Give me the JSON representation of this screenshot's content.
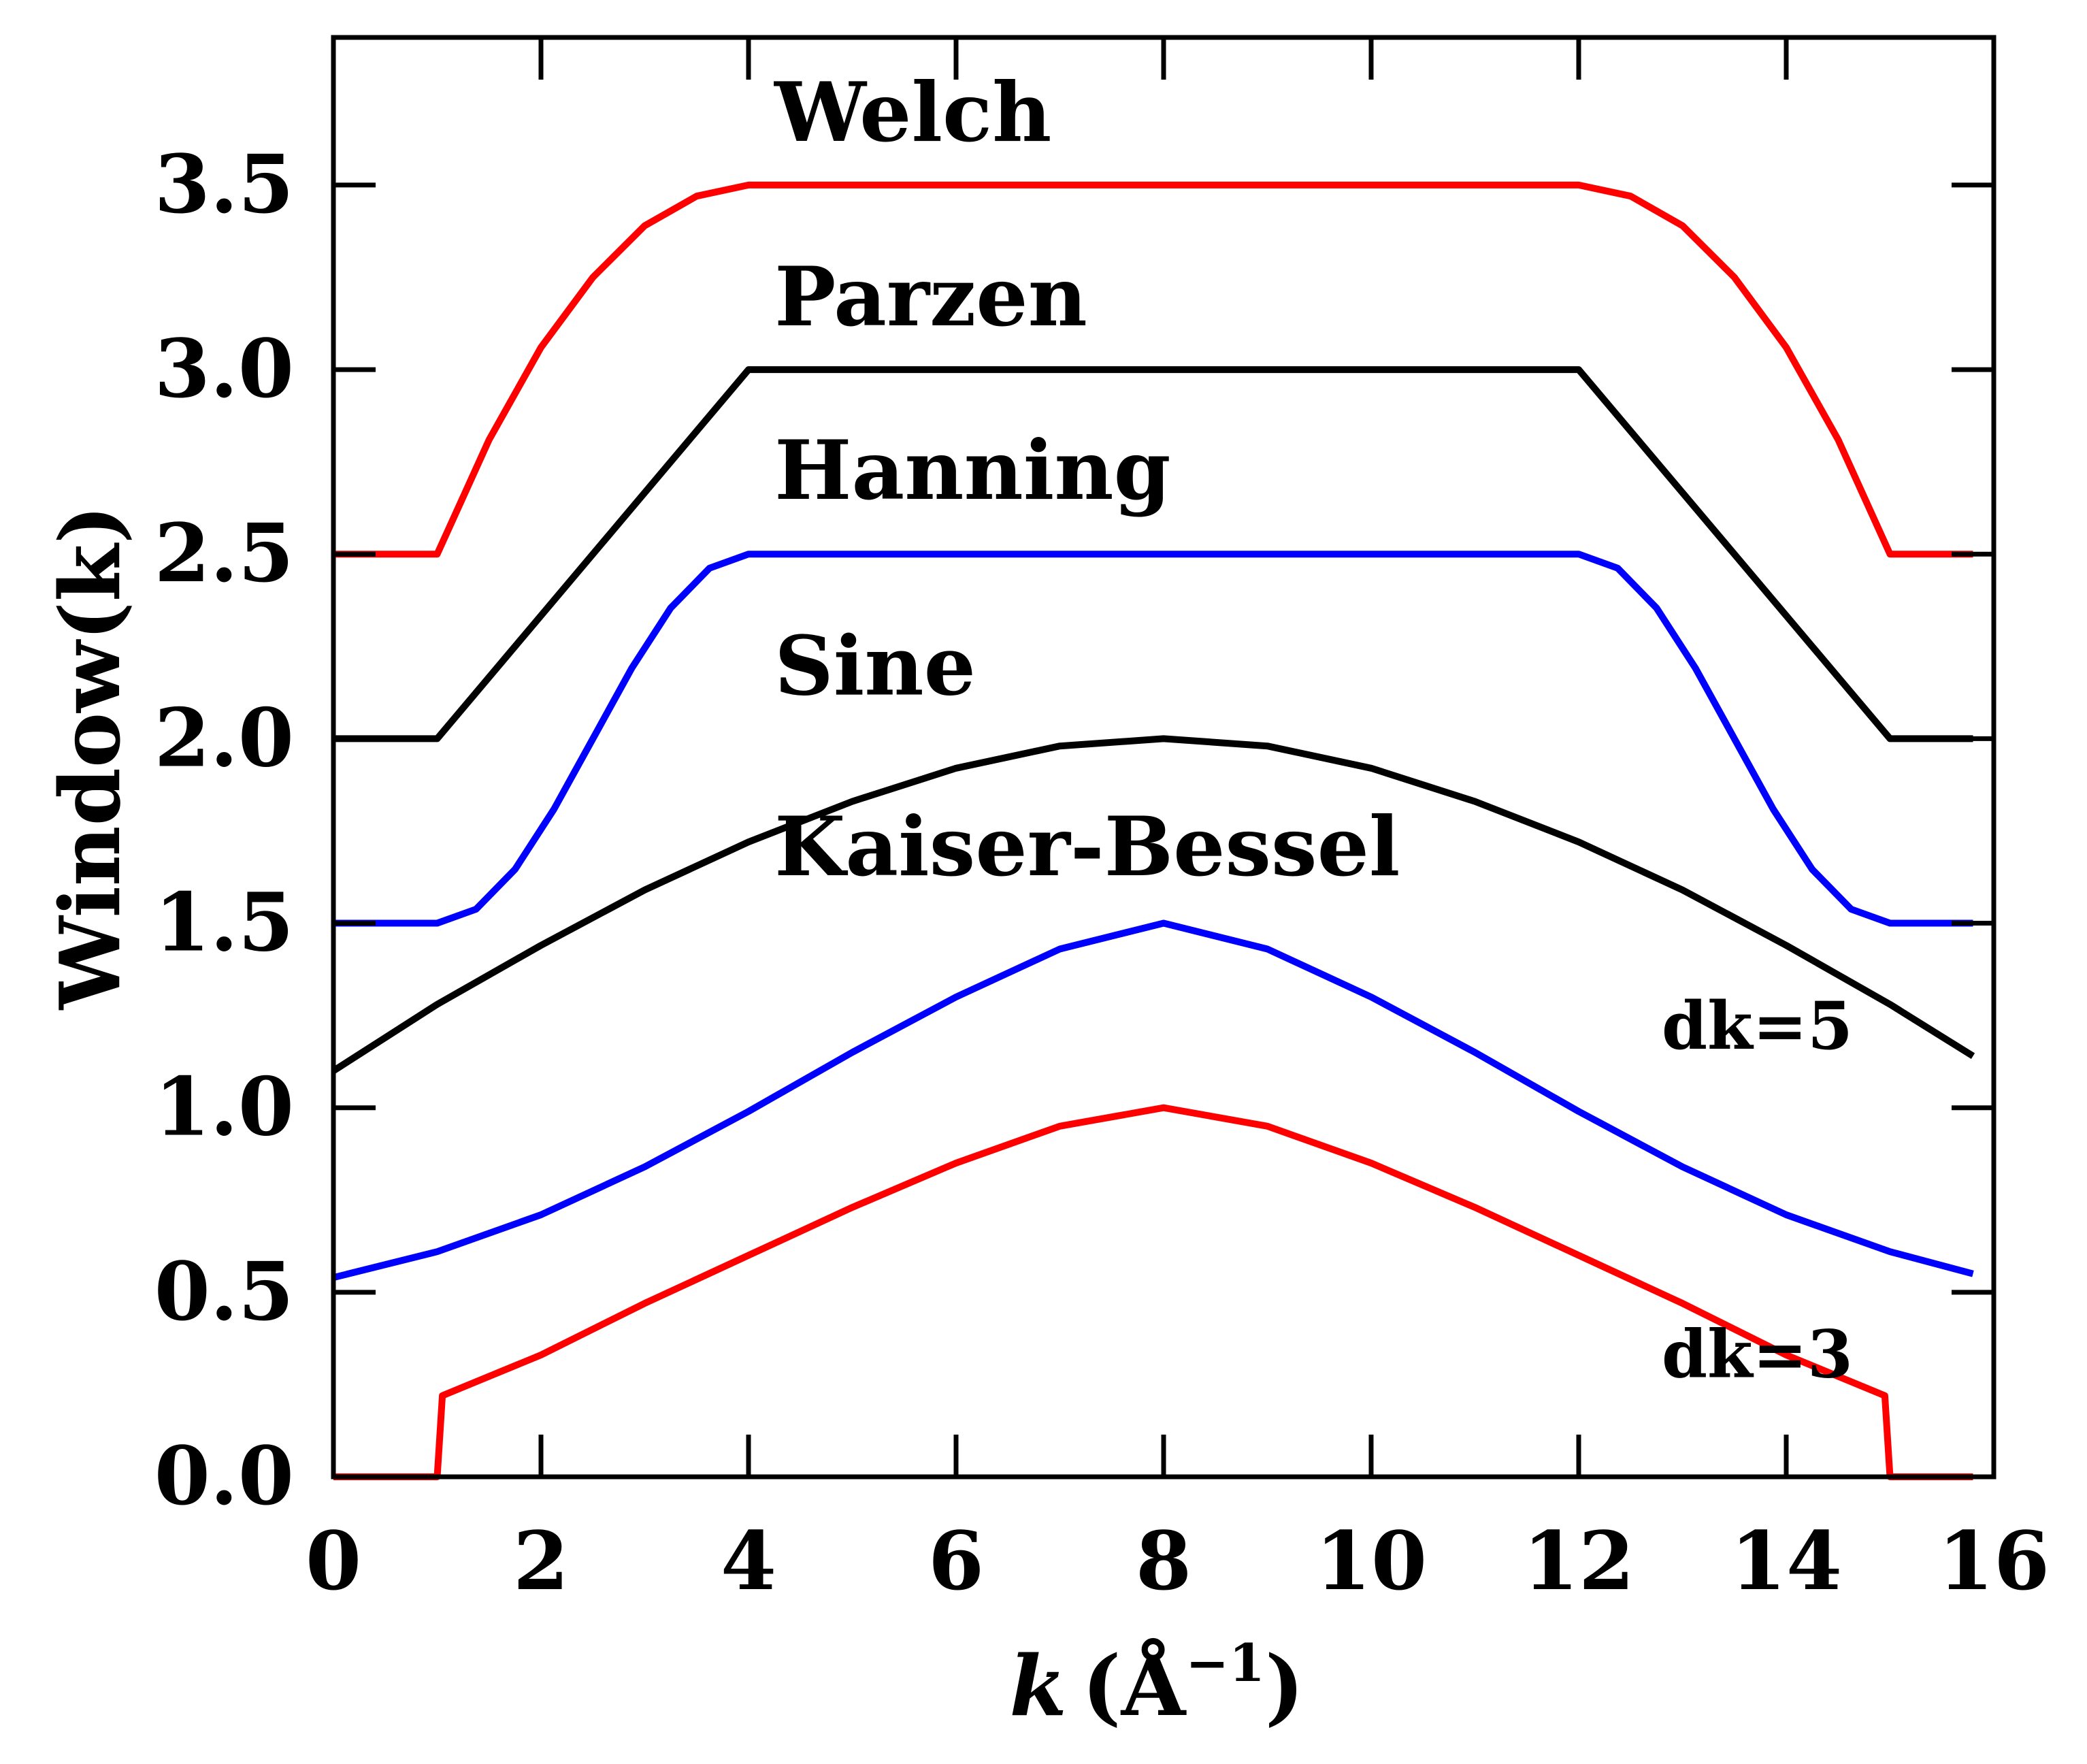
{
  "chart_data": {
    "type": "line",
    "xlabel": "k (Å⁻¹)",
    "xlabel_parts": {
      "var": "k",
      "unit": "(Å",
      "exp": "−1",
      "close": ")"
    },
    "ylabel": "Window(k)",
    "xlim": [
      0,
      16
    ],
    "ylim": [
      0,
      3.9
    ],
    "xticks": [
      0,
      2,
      4,
      6,
      8,
      10,
      12,
      14,
      16
    ],
    "xtick_labels": [
      "0",
      "2",
      "4",
      "6",
      "8",
      "10",
      "12",
      "14",
      "16"
    ],
    "yticks": [
      0,
      0.5,
      1,
      1.5,
      2,
      2.5,
      3,
      3.5
    ],
    "ytick_labels": [
      "0.0",
      "0.5",
      "1.0",
      "1.5",
      "2.0",
      "2.5",
      "3.0",
      "3.5"
    ],
    "grid": false,
    "colors": {
      "red": "#ff0000",
      "black": "#000000",
      "blue": "#0000ff"
    },
    "series": [
      {
        "color": "#ff0000",
        "x": [
          0,
          1,
          1.5,
          2,
          2.5,
          3,
          3.5,
          4,
          6,
          8,
          10,
          12,
          12.5,
          13,
          13.5,
          14,
          14.5,
          15,
          15.8
        ],
        "y": [
          2.5,
          2.5,
          2.81,
          3.06,
          3.25,
          3.39,
          3.47,
          3.5,
          3.5,
          3.5,
          3.5,
          3.5,
          3.47,
          3.39,
          3.25,
          3.06,
          2.81,
          2.5,
          2.5
        ]
      },
      {
        "color": "#000000",
        "x": [
          0,
          1,
          4,
          12,
          15,
          15.8
        ],
        "y": [
          2.0,
          2.0,
          3.0,
          3.0,
          2.0,
          2.0
        ]
      },
      {
        "color": "#0000ff",
        "x": [
          0,
          1,
          1.375,
          1.75,
          2.125,
          2.5,
          2.875,
          3.25,
          3.625,
          4,
          12,
          12.375,
          12.75,
          13.125,
          13.5,
          13.875,
          14.25,
          14.625,
          15,
          15.8
        ],
        "y": [
          1.5,
          1.5,
          1.538,
          1.646,
          1.809,
          2.0,
          2.191,
          2.354,
          2.462,
          2.5,
          2.5,
          2.462,
          2.354,
          2.191,
          2.0,
          1.809,
          1.646,
          1.538,
          1.5,
          1.5
        ]
      },
      {
        "color": "#000000",
        "x": [
          0,
          1,
          2,
          3,
          4,
          5,
          6,
          7,
          8,
          9,
          10,
          11,
          12,
          13,
          14,
          15,
          15.8
        ],
        "y": [
          1.1,
          1.28,
          1.44,
          1.59,
          1.72,
          1.83,
          1.92,
          1.98,
          2.0,
          1.98,
          1.92,
          1.83,
          1.72,
          1.59,
          1.44,
          1.28,
          1.14
        ]
      },
      {
        "color": "#0000ff",
        "x": [
          0,
          1,
          2,
          3,
          4,
          5,
          6,
          7,
          8,
          9,
          10,
          11,
          12,
          13,
          14,
          15,
          15.8
        ],
        "y": [
          0.54,
          0.61,
          0.71,
          0.84,
          0.99,
          1.15,
          1.3,
          1.43,
          1.5,
          1.43,
          1.3,
          1.15,
          0.99,
          0.84,
          0.71,
          0.61,
          0.55
        ]
      },
      {
        "color": "#ff0000",
        "x": [
          0,
          1,
          1.05,
          2,
          3,
          4,
          5,
          6,
          7,
          8,
          9,
          10,
          11,
          12,
          13,
          14,
          14.95,
          15,
          15.8
        ],
        "y": [
          0,
          0,
          0.22,
          0.33,
          0.47,
          0.6,
          0.73,
          0.85,
          0.95,
          1.0,
          0.95,
          0.85,
          0.73,
          0.6,
          0.47,
          0.33,
          0.22,
          0,
          0
        ]
      }
    ],
    "annotations": [
      {
        "text": "Welch",
        "x": 4.25,
        "y": 3.62,
        "size": "large"
      },
      {
        "text": "Parzen",
        "x": 4.25,
        "y": 3.12,
        "size": "large"
      },
      {
        "text": "Hanning",
        "x": 4.25,
        "y": 2.65,
        "size": "large"
      },
      {
        "text": "Sine",
        "x": 4.25,
        "y": 2.12,
        "size": "large"
      },
      {
        "text": "Kaiser-Bessel",
        "x": 4.25,
        "y": 1.63,
        "size": "large"
      },
      {
        "text": "dk=5",
        "x": 12.8,
        "y": 1.16,
        "size": "small"
      },
      {
        "text": "dk=3",
        "x": 12.8,
        "y": 0.27,
        "size": "small"
      }
    ]
  }
}
